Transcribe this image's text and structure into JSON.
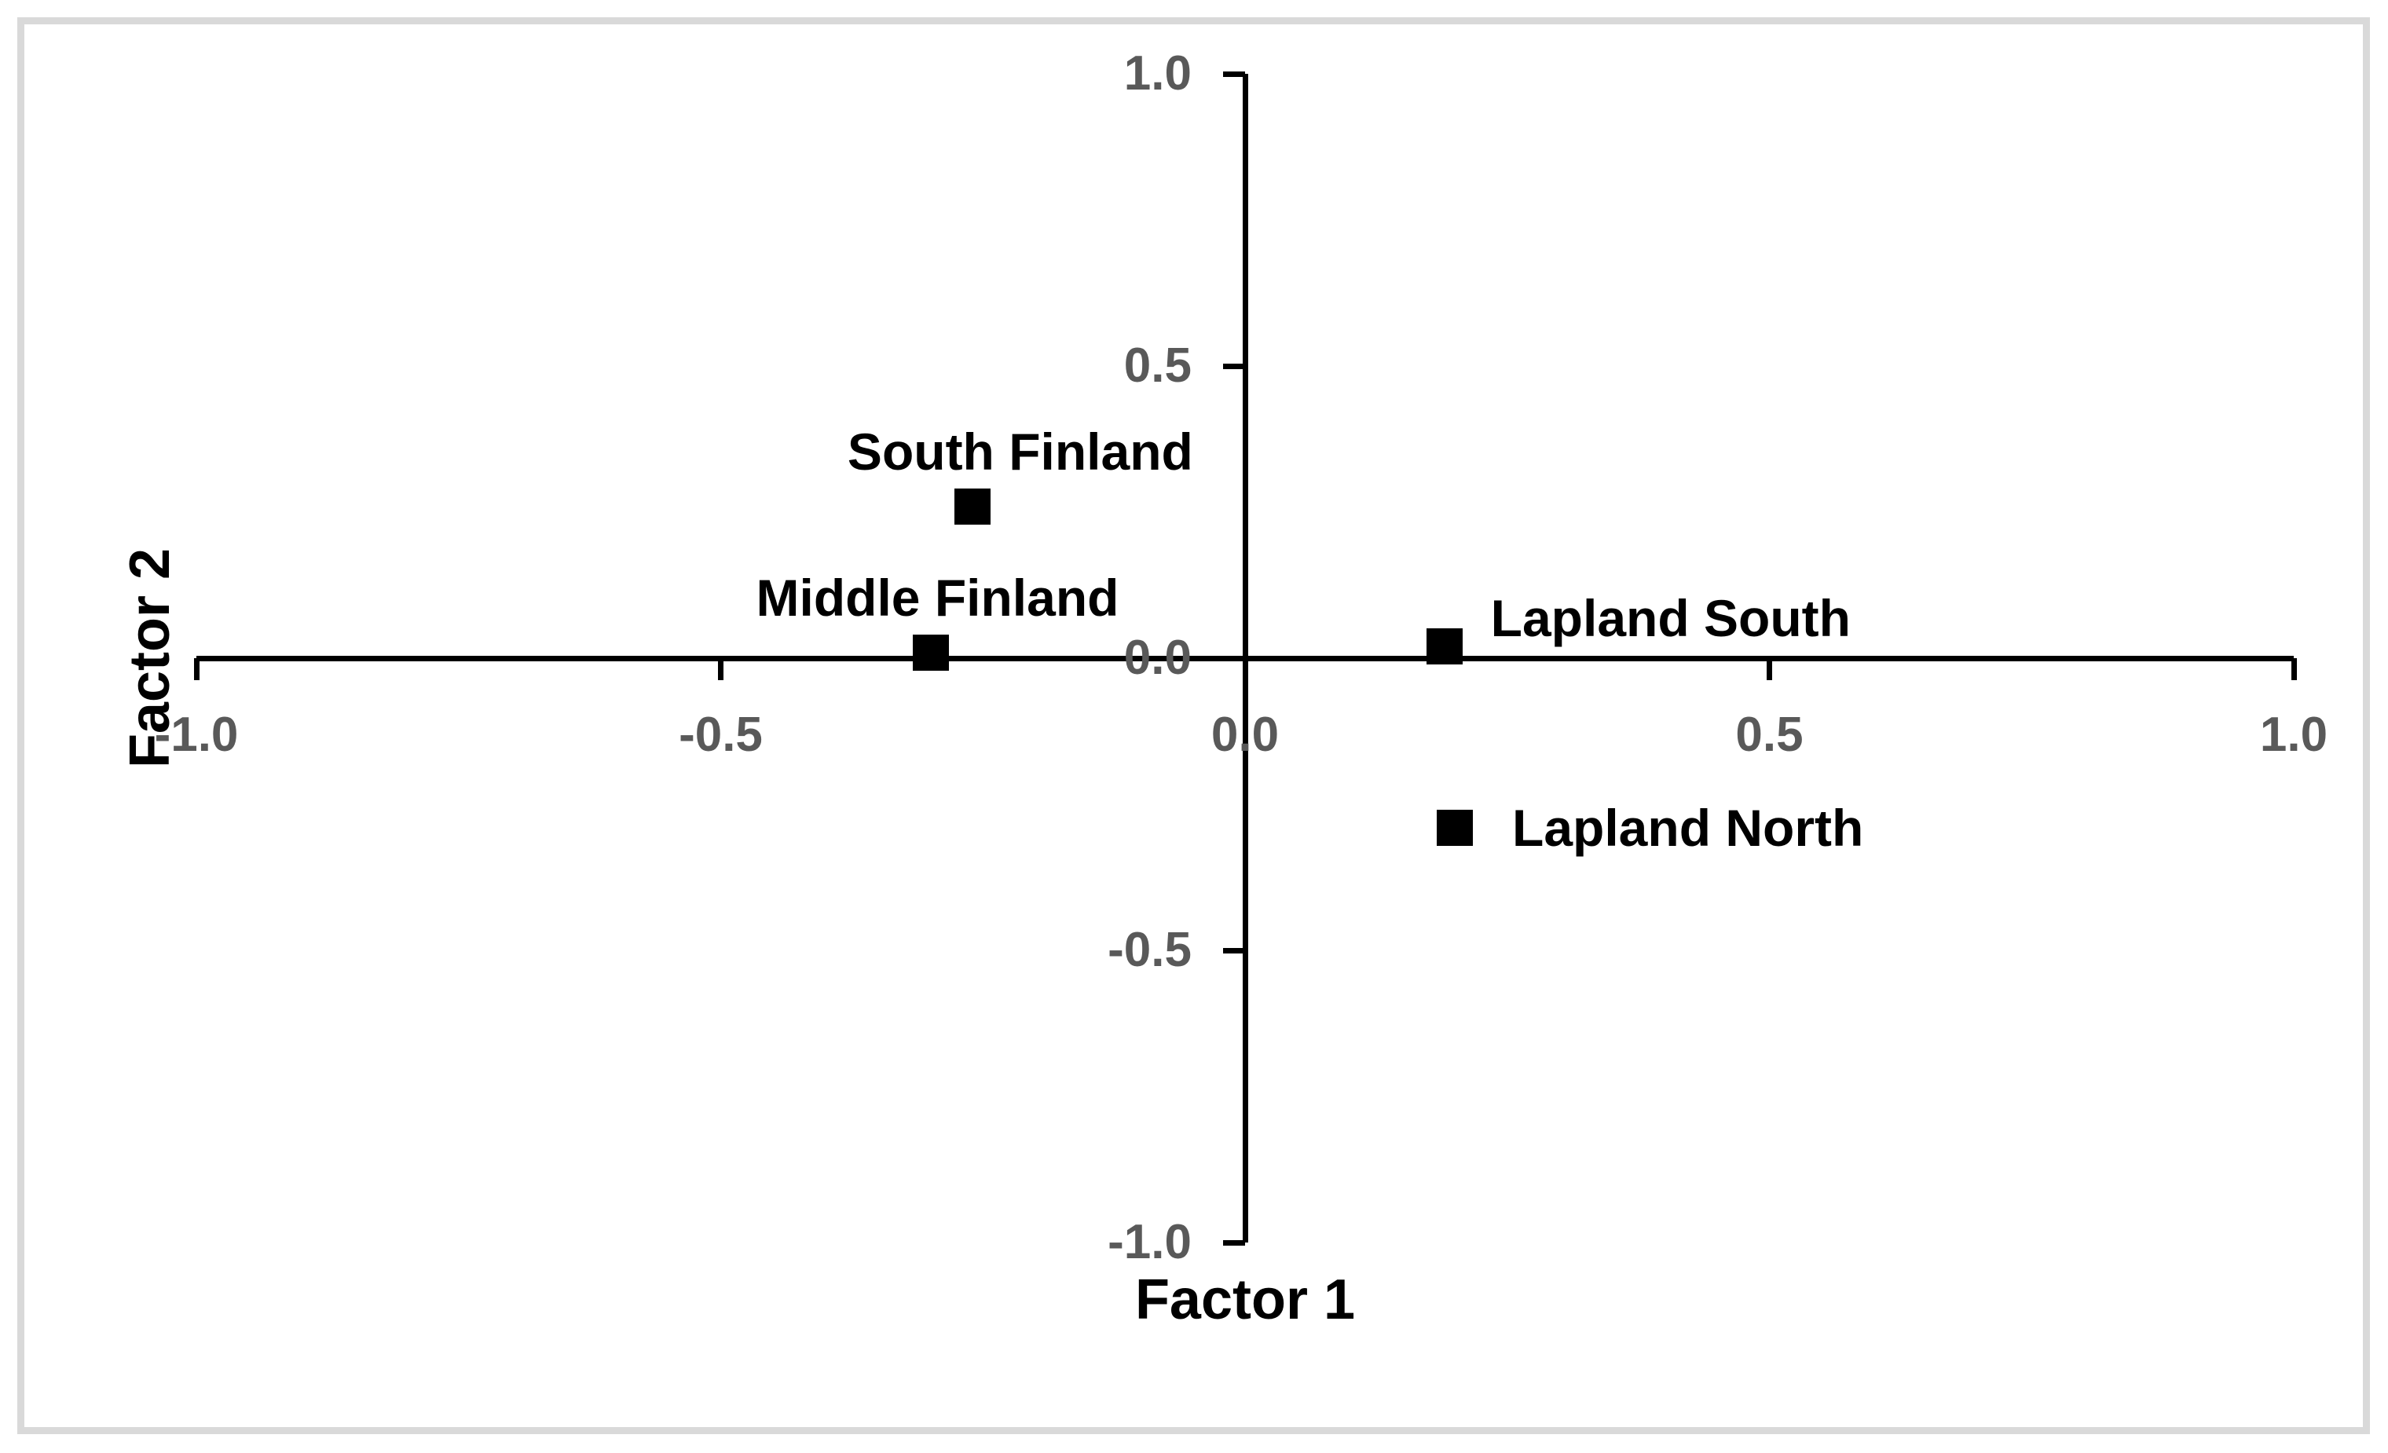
{
  "page": {
    "background_color": "#ffffff",
    "border_color": "#d9d9d9"
  },
  "chart_data": {
    "type": "scatter",
    "title": "",
    "xlabel": "Factor 1",
    "ylabel": "Factor 2",
    "xlim": [
      -1.0,
      1.0
    ],
    "ylim": [
      -1.0,
      1.0
    ],
    "x_ticks": [
      -1.0,
      -0.5,
      0.0,
      0.5,
      1.0
    ],
    "x_tick_labels": [
      "-1.0",
      "-0.5",
      "0.0",
      "0.5",
      "1.0"
    ],
    "y_ticks": [
      1.0,
      0.5,
      0.0,
      -0.5,
      -1.0
    ],
    "y_tick_labels": [
      "1.0",
      "0.5",
      "0.0",
      "-0.5",
      "-1.0"
    ],
    "grid": false,
    "legend": false,
    "marker_shape": "square",
    "marker_color": "#000000",
    "axis_color": "#000000",
    "tick_label_color": "#595959",
    "point_label_color": "#000000",
    "points": [
      {
        "label": "South Finland",
        "x": -0.26,
        "y": 0.26,
        "label_placement": "above",
        "label_dx": 61,
        "label_gap": 14
      },
      {
        "label": "Middle Finland",
        "x": -0.3,
        "y": 0.01,
        "label_placement": "above",
        "label_dx": 9,
        "label_gap": 14
      },
      {
        "label": "Lapland South",
        "x": 0.19,
        "y": 0.02,
        "label_placement": "right",
        "label_gap": 36,
        "label_dy": -36
      },
      {
        "label": "Lapland North",
        "x": 0.2,
        "y": -0.29,
        "label_placement": "right",
        "label_gap": 50,
        "label_dy": 0
      }
    ]
  }
}
